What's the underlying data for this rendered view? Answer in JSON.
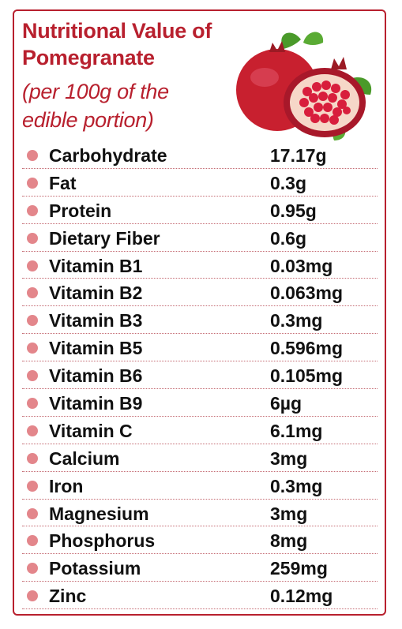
{
  "header": {
    "title": "Nutritional Value of Pomegranate",
    "subtitle": "(per 100g of the edible portion)"
  },
  "illustration": {
    "icon": "pomegranate-illustration",
    "colors": {
      "fruit": "#c8202f",
      "seed": "#d81e3c",
      "leaf": "#4a9a2a"
    }
  },
  "theme": {
    "accent": "#b8202e",
    "bullet": "#e3868b"
  },
  "nutrients": [
    {
      "name": "Carbohydrate",
      "value": "17.17g"
    },
    {
      "name": "Fat",
      "value": "0.3g"
    },
    {
      "name": "Protein",
      "value": "0.95g"
    },
    {
      "name": "Dietary Fiber",
      "value": "0.6g"
    },
    {
      "name": "Vitamin B1",
      "value": "0.03mg"
    },
    {
      "name": "Vitamin B2",
      "value": "0.063mg"
    },
    {
      "name": "Vitamin B3",
      "value": "0.3mg"
    },
    {
      "name": "Vitamin B5",
      "value": "0.596mg"
    },
    {
      "name": "Vitamin B6",
      "value": "0.105mg"
    },
    {
      "name": "Vitamin B9",
      "value": "6µg"
    },
    {
      "name": "Vitamin C",
      "value": "6.1mg"
    },
    {
      "name": "Calcium",
      "value": "3mg"
    },
    {
      "name": "Iron",
      "value": "0.3mg"
    },
    {
      "name": "Magnesium",
      "value": "3mg"
    },
    {
      "name": "Phosphorus",
      "value": "8mg"
    },
    {
      "name": "Potassium",
      "value": "259mg"
    },
    {
      "name": "Zinc",
      "value": "0.12mg"
    }
  ]
}
